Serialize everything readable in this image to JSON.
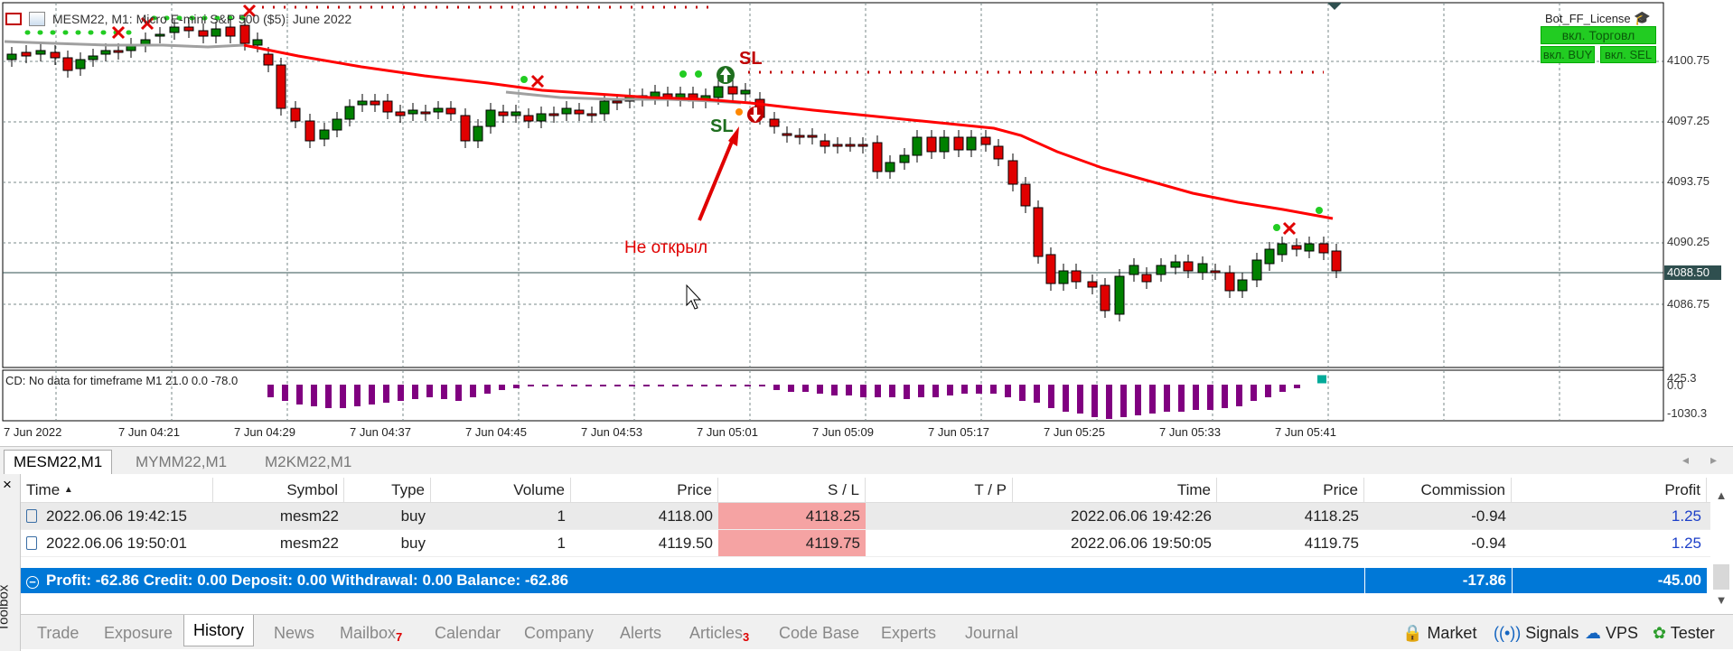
{
  "chart": {
    "title": "MESM22, M1:  Micro E-mini S&P 500 ($5): June 2022",
    "license_label": "Bot_FF_License",
    "btn_trade": "вкл. Торговл",
    "btn_buy": "вкл. BUY",
    "btn_sell": "вкл. SEL",
    "price_labels": [
      "4100.75",
      "4097.25",
      "4093.75",
      "4090.25",
      "4086.75"
    ],
    "current_price": "4088.50",
    "annotation": "Не открыл",
    "sl_label": "SL",
    "indicator_label": "CD: No data for timeframe M1 21.0 0.0 -78.0",
    "indicator_scale": [
      "425.3",
      "0.0",
      "-1030.3"
    ],
    "time_labels": [
      "7 Jun 2022",
      "7 Jun 04:21",
      "7 Jun 04:29",
      "7 Jun 04:37",
      "7 Jun 04:45",
      "7 Jun 04:53",
      "7 Jun 05:01",
      "7 Jun 05:09",
      "7 Jun 05:17",
      "7 Jun 05:25",
      "7 Jun 05:33",
      "7 Jun 05:41"
    ],
    "colors": {
      "bull": "#008000",
      "bear": "#e00000",
      "ma": "#ff0000",
      "histogram": "#800080",
      "current_price_bg": "#2f4f4f"
    }
  },
  "symbol_tabs": [
    "MESM22,M1",
    "MYMM22,M1",
    "M2KM22,M1"
  ],
  "table": {
    "headers": [
      "Time",
      "Symbol",
      "Type",
      "Volume",
      "Price",
      "S / L",
      "T / P",
      "Time",
      "Price",
      "Commission",
      "Profit"
    ],
    "rows": [
      {
        "time": "2022.06.06 19:42:15",
        "symbol": "mesm22",
        "type": "buy",
        "volume": "1",
        "price": "4118.00",
        "sl": "4118.25",
        "tp": "",
        "close_time": "2022.06.06 19:42:26",
        "close_price": "4118.25",
        "commission": "-0.94",
        "profit": "1.25"
      },
      {
        "time": "2022.06.06 19:50:01",
        "symbol": "mesm22",
        "type": "buy",
        "volume": "1",
        "price": "4119.50",
        "sl": "4119.75",
        "tp": "",
        "close_time": "2022.06.06 19:50:05",
        "close_price": "4119.75",
        "commission": "-0.94",
        "profit": "1.25"
      }
    ],
    "summary": {
      "text": "Profit: -62.86  Credit: 0.00  Deposit: 0.00  Withdrawal: 0.00  Balance: -62.86",
      "commission": "-17.86",
      "profit": "-45.00"
    }
  },
  "toolbox": {
    "label": "Toolbox",
    "close": "×",
    "tabs": [
      "Trade",
      "Exposure",
      "History",
      "News",
      "Mailbox",
      "Calendar",
      "Company",
      "Alerts",
      "Articles",
      "Code Base",
      "Experts",
      "Journal"
    ],
    "mailbox_count": "7",
    "articles_count": "3",
    "right_tools": [
      "Market",
      "Signals",
      "VPS",
      "Tester"
    ]
  }
}
